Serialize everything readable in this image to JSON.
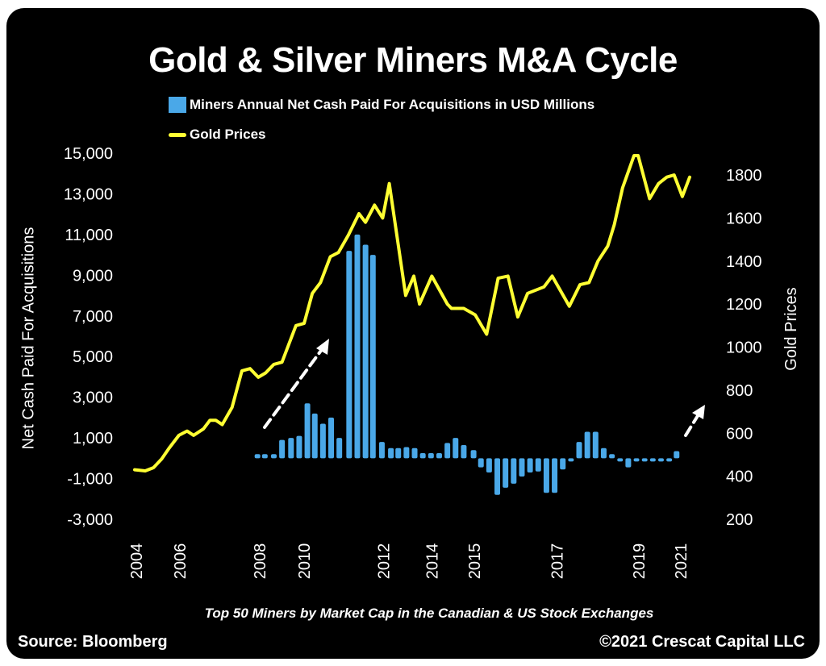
{
  "chart_data": {
    "type": "bar+line",
    "title": "Gold & Silver Miners M&A Cycle",
    "subtitle": "Top 50 Miners by Market Cap in the Canadian & US Stock Exchanges",
    "source": "Source: Bloomberg",
    "copyright": "©2021 Crescat Capital LLC",
    "legend": {
      "bar": "Miners Annual Net Cash Paid For Acquisitions in USD Millions",
      "line": "Gold Prices",
      "placement": "top-left"
    },
    "y_left": {
      "label": "Net Cash Paid For Acquisitions",
      "range": [
        -3000,
        15000
      ],
      "ticks": [
        "15,000",
        "13,000",
        "11,000",
        "9,000",
        "7,000",
        "5,000",
        "3,000",
        "1,000",
        "-1,000",
        "-3,000"
      ],
      "tick_values": [
        15000,
        13000,
        11000,
        9000,
        7000,
        5000,
        3000,
        1000,
        -1000,
        -3000
      ]
    },
    "y_right": {
      "label": "Gold Prices",
      "range": [
        200,
        1800
      ],
      "ticks": [
        "1800",
        "1600",
        "1400",
        "1200",
        "1000",
        "800",
        "600",
        "400",
        "200"
      ],
      "tick_values": [
        1800,
        1600,
        1400,
        1200,
        1000,
        800,
        600,
        400,
        200
      ]
    },
    "x_axis": {
      "labels": [
        "2004",
        "2006",
        "2008",
        "2010",
        "2012",
        "2014",
        "2015",
        "2017",
        "2019",
        "2021"
      ],
      "label_periods": [
        0,
        5.3,
        15.1,
        20.5,
        30.2,
        36.1,
        41.3,
        51.4,
        61.4,
        66.5
      ],
      "period_range": [
        0,
        67.5
      ]
    },
    "bars": {
      "name": "Miners Annual Net Cash Paid For Acquisitions in USD Millions",
      "color": "#4aa8e8",
      "periods": [
        14.7,
        15.6,
        16.7,
        17.7,
        18.8,
        19.8,
        20.8,
        21.7,
        22.7,
        23.7,
        24.7,
        25.9,
        26.9,
        27.9,
        28.8,
        29.9,
        31.0,
        31.9,
        32.9,
        33.9,
        34.9,
        35.9,
        36.9,
        37.9,
        38.9,
        39.9,
        41.1,
        42.0,
        43.0,
        44.0,
        45.0,
        46.0,
        47.0,
        48.0,
        49.0,
        50.0,
        51.0,
        52.0,
        53.0,
        54.0,
        55.0,
        56.0,
        57.0,
        58.0,
        59.0,
        60.0,
        61.0,
        62.0,
        63.0,
        64.0,
        65.0,
        65.9
      ],
      "values": [
        200,
        200,
        200,
        900,
        1000,
        1100,
        2700,
        2200,
        1700,
        2000,
        1000,
        10200,
        11000,
        10500,
        10000,
        800,
        500,
        500,
        550,
        500,
        250,
        250,
        250,
        750,
        1000,
        650,
        400,
        -450,
        -700,
        -1800,
        -1450,
        -1250,
        -900,
        -700,
        -650,
        -1700,
        -1700,
        -550,
        -100,
        800,
        1300,
        1300,
        500,
        200,
        -150,
        -450,
        -100,
        -100,
        -100,
        -150,
        -100,
        350
      ]
    },
    "line": {
      "name": "Gold Prices",
      "color": "#ffff33",
      "periods": [
        -0.3,
        1.0,
        2.0,
        3.0,
        3.9,
        5.1,
        6.1,
        6.9,
        8.1,
        8.9,
        9.6,
        10.4,
        11.6,
        12.8,
        13.8,
        14.8,
        15.7,
        16.7,
        17.7,
        18.2,
        19.4,
        20.4,
        21.4,
        22.4,
        23.6,
        24.6,
        25.8,
        27.1,
        27.9,
        29.0,
        30.0,
        30.8,
        32.8,
        33.8,
        34.5,
        36.0,
        37.9,
        38.4,
        39.9,
        41.3,
        42.7,
        44.1,
        45.3,
        46.5,
        47.7,
        49.7,
        50.7,
        52.8,
        54.1,
        55.2,
        56.3,
        57.5,
        58.3,
        59.3,
        60.7,
        61.2,
        62.6,
        63.7,
        64.7,
        65.6,
        66.6,
        67.5
      ],
      "values": [
        430,
        425,
        440,
        480,
        530,
        590,
        610,
        590,
        620,
        660,
        660,
        640,
        720,
        890,
        900,
        860,
        880,
        920,
        930,
        980,
        1100,
        1110,
        1250,
        1300,
        1420,
        1440,
        1520,
        1620,
        1580,
        1660,
        1600,
        1760,
        1240,
        1330,
        1200,
        1330,
        1200,
        1180,
        1180,
        1150,
        1060,
        1320,
        1330,
        1140,
        1250,
        1280,
        1330,
        1190,
        1290,
        1300,
        1400,
        1470,
        1570,
        1740,
        1890,
        1890,
        1690,
        1760,
        1790,
        1800,
        1700,
        1790
      ]
    }
  }
}
